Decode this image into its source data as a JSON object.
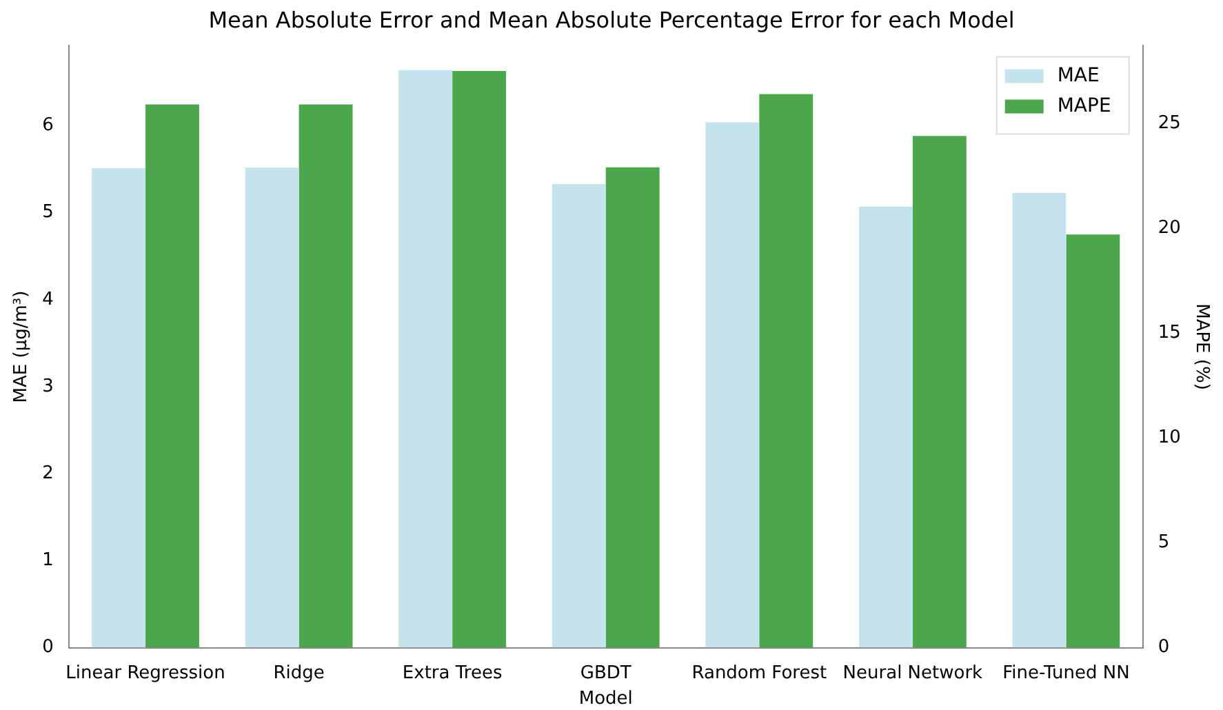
{
  "chart_data": {
    "type": "bar",
    "title": "Mean Absolute Error and Mean Absolute Percentage Error for each Model",
    "xlabel": "Model",
    "ylabel": "MAE (μg/m³)",
    "y2label": "MAPE (%)",
    "categories": [
      "Linear Regression",
      "Ridge",
      "Extra Trees",
      "GBDT",
      "Random Forest",
      "Neural Network",
      "Fine-Tuned NN"
    ],
    "series": [
      {
        "name": "MAE",
        "color": "#c5e3ec",
        "values": [
          5.51,
          5.52,
          6.64,
          5.33,
          6.04,
          5.07,
          5.23
        ]
      },
      {
        "name": "MAPE",
        "color": "#4ca64c",
        "axis": "y2",
        "values": [
          25.9,
          25.9,
          27.5,
          22.9,
          26.4,
          24.4,
          19.7
        ]
      }
    ],
    "ylim": [
      0,
      6.92
    ],
    "yticks": [
      0,
      1,
      2,
      3,
      4,
      5,
      6
    ],
    "y2lim": [
      0,
      28.7
    ],
    "y2ticks": [
      0,
      5,
      10,
      15,
      20,
      25
    ],
    "grid": false,
    "legend": "top right"
  }
}
